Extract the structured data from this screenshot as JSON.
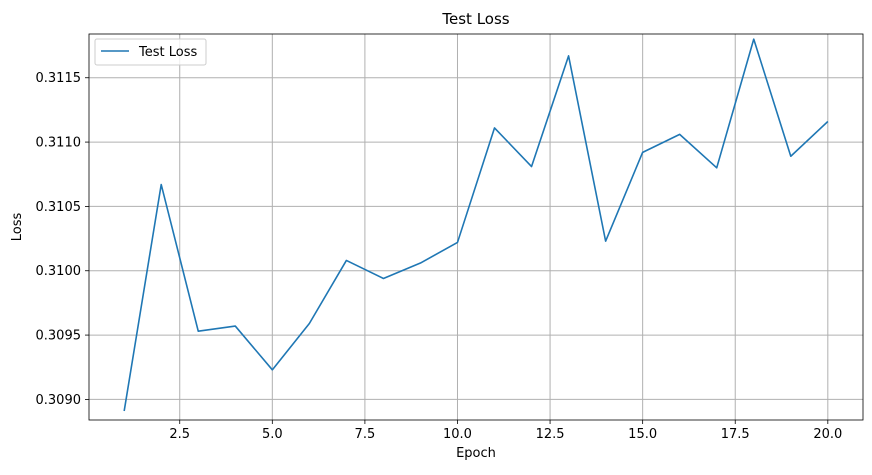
{
  "chart_data": {
    "type": "line",
    "title": "Test Loss",
    "xlabel": "Epoch",
    "ylabel": "Loss",
    "xlim": [
      0.05,
      20.95
    ],
    "ylim": [
      0.30884,
      0.31184
    ],
    "x_ticks": [
      2.5,
      5.0,
      7.5,
      10.0,
      12.5,
      15.0,
      17.5,
      20.0
    ],
    "x_tick_labels": [
      "2.5",
      "5.0",
      "7.5",
      "10.0",
      "12.5",
      "15.0",
      "17.5",
      "20.0"
    ],
    "y_ticks": [
      0.309,
      0.3095,
      0.31,
      0.3105,
      0.311,
      0.3115
    ],
    "y_tick_labels": [
      "0.3090",
      "0.3095",
      "0.3100",
      "0.3105",
      "0.3110",
      "0.3115"
    ],
    "grid": true,
    "legend_position": "top-left",
    "series": [
      {
        "name": "Test Loss",
        "color": "#1f77b4",
        "x": [
          1,
          2,
          3,
          4,
          5,
          6,
          7,
          8,
          9,
          10,
          11,
          12,
          13,
          14,
          15,
          16,
          17,
          18,
          19,
          20
        ],
        "y": [
          0.30891,
          0.31067,
          0.30953,
          0.30957,
          0.30923,
          0.30959,
          0.31008,
          0.30994,
          0.31006,
          0.31022,
          0.31111,
          0.31081,
          0.31167,
          0.31023,
          0.31092,
          0.31106,
          0.3108,
          0.3118,
          0.31089,
          0.31116
        ]
      }
    ]
  }
}
